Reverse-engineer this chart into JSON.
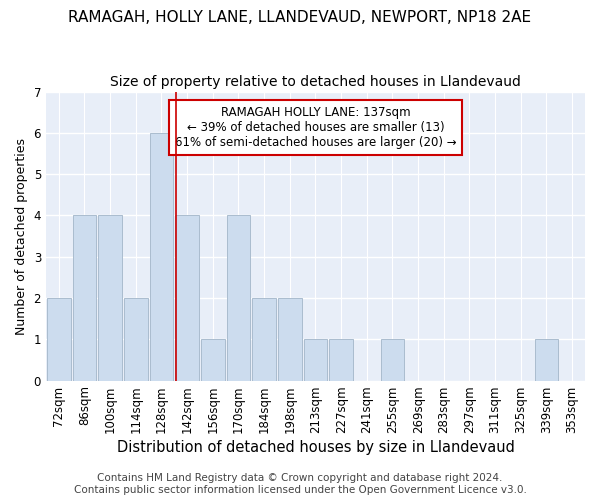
{
  "title1": "RAMAGAH, HOLLY LANE, LLANDEVAUD, NEWPORT, NP18 2AE",
  "title2": "Size of property relative to detached houses in Llandevaud",
  "xlabel": "Distribution of detached houses by size in Llandevaud",
  "ylabel": "Number of detached properties",
  "categories": [
    "72sqm",
    "86sqm",
    "100sqm",
    "114sqm",
    "128sqm",
    "142sqm",
    "156sqm",
    "170sqm",
    "184sqm",
    "198sqm",
    "213sqm",
    "227sqm",
    "241sqm",
    "255sqm",
    "269sqm",
    "283sqm",
    "297sqm",
    "311sqm",
    "325sqm",
    "339sqm",
    "353sqm"
  ],
  "values": [
    2,
    4,
    4,
    2,
    6,
    4,
    1,
    4,
    2,
    2,
    1,
    1,
    0,
    1,
    0,
    0,
    0,
    0,
    0,
    1,
    0
  ],
  "bar_color": "#ccdcee",
  "bar_edge_color": "#aabcce",
  "vline_x_index": 4.58,
  "vline_color": "#cc0000",
  "ylim": [
    0,
    7
  ],
  "yticks": [
    0,
    1,
    2,
    3,
    4,
    5,
    6,
    7
  ],
  "annotation_text": "RAMAGAH HOLLY LANE: 137sqm\n← 39% of detached houses are smaller (13)\n61% of semi-detached houses are larger (20) →",
  "annotation_box_color": "#ffffff",
  "annotation_box_edge_color": "#cc0000",
  "footer1": "Contains HM Land Registry data © Crown copyright and database right 2024.",
  "footer2": "Contains public sector information licensed under the Open Government Licence v3.0.",
  "fig_background_color": "#ffffff",
  "axes_background_color": "#e8eef8",
  "grid_color": "#ffffff",
  "title_fontsize": 11,
  "subtitle_fontsize": 10,
  "tick_fontsize": 8.5,
  "ylabel_fontsize": 9,
  "xlabel_fontsize": 10.5,
  "footer_fontsize": 7.5,
  "annot_fontsize": 8.5
}
